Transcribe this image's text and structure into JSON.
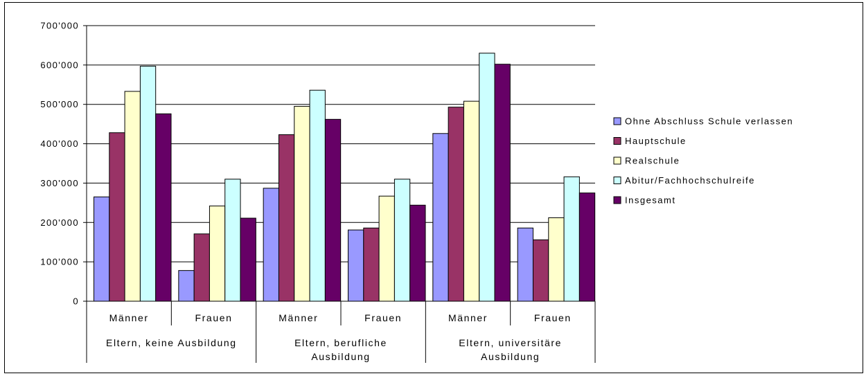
{
  "chart_data": {
    "type": "bar",
    "title": "",
    "xlabel": "",
    "ylabel": "",
    "ylim": [
      0,
      700000
    ],
    "yticks": [
      0,
      100000,
      200000,
      300000,
      400000,
      500000,
      600000,
      700000
    ],
    "ytick_labels": [
      "0",
      "100'000",
      "200'000",
      "300'000",
      "400'000",
      "500'000",
      "600'000",
      "700'000"
    ],
    "grid": true,
    "legend_position": "right",
    "categories": [
      "Männer",
      "Frauen",
      "Männer",
      "Frauen",
      "Männer",
      "Frauen"
    ],
    "groups": [
      {
        "label_lines": [
          "Eltern, keine Ausbildung"
        ],
        "span": [
          0,
          1
        ]
      },
      {
        "label_lines": [
          "Eltern, berufliche",
          "Ausbildung"
        ],
        "span": [
          2,
          3
        ]
      },
      {
        "label_lines": [
          "Eltern, universitäre",
          "Ausbildung"
        ],
        "span": [
          4,
          5
        ]
      }
    ],
    "series": [
      {
        "name": "Ohne Abschluss Schule verlassen",
        "color": "#9999ff",
        "values": [
          265000,
          78000,
          287000,
          181000,
          426000,
          186000
        ]
      },
      {
        "name": "Hauptschule",
        "color": "#993366",
        "values": [
          428000,
          171000,
          423000,
          186000,
          493000,
          156000
        ]
      },
      {
        "name": "Realschule",
        "color": "#ffffcc",
        "values": [
          533000,
          242000,
          495000,
          267000,
          508000,
          212000
        ]
      },
      {
        "name": "Abitur/Fachhochschulreife",
        "color": "#ccffff",
        "values": [
          597000,
          310000,
          536000,
          310000,
          630000,
          316000
        ]
      },
      {
        "name": "Insgesamt",
        "color": "#660066",
        "values": [
          476000,
          211000,
          462000,
          244000,
          602000,
          275000
        ]
      }
    ]
  }
}
